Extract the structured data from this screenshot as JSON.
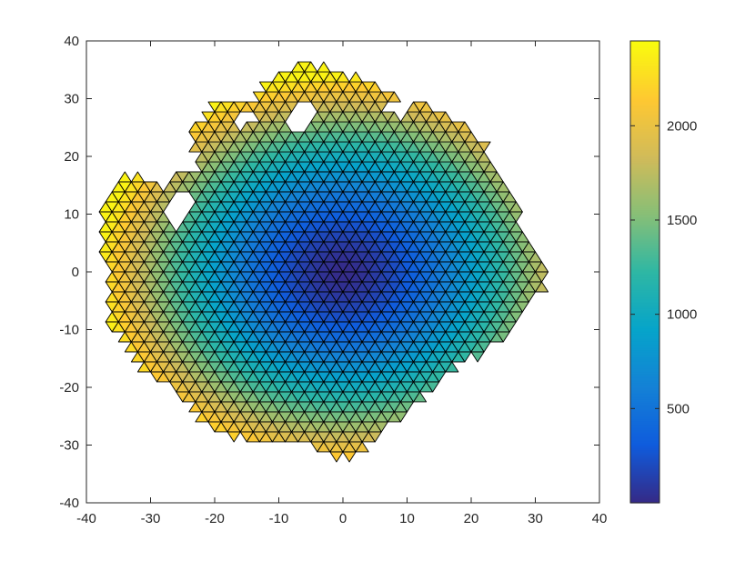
{
  "chart_data": {
    "type": "heatmap",
    "description_of_marks": "",
    "x_axis": {
      "range": [
        -40,
        40
      ],
      "ticks": [
        -40,
        -30,
        -20,
        -10,
        0,
        10,
        20,
        30,
        40
      ],
      "tick_labels": [
        "-40",
        "-30",
        "-20",
        "-10",
        "0",
        "10",
        "20",
        "30",
        "40"
      ]
    },
    "y_axis": {
      "range": [
        -40,
        40
      ],
      "ticks": [
        -40,
        -30,
        -20,
        -10,
        0,
        10,
        20,
        30,
        40
      ],
      "tick_labels": [
        "-40",
        "-30",
        "-20",
        "-10",
        "0",
        "10",
        "20",
        "30",
        "40"
      ]
    },
    "colorbar": {
      "range": [
        0,
        2450
      ],
      "ticks": [
        500,
        1000,
        1500,
        2000
      ],
      "tick_labels": [
        "500",
        "1000",
        "1500",
        "2000"
      ],
      "colormap": "parula"
    },
    "field": {
      "center": [
        0,
        0
      ],
      "max_value_at_edge": 2400,
      "triangle_side": 2
    },
    "region": {
      "boundary": [
        [
          -37,
          12
        ],
        [
          -35,
          16
        ],
        [
          -32,
          17
        ],
        [
          -28,
          15
        ],
        [
          -26,
          17
        ],
        [
          -22,
          17
        ],
        [
          -24,
          24
        ],
        [
          -20,
          29
        ],
        [
          -14,
          30
        ],
        [
          -12,
          33
        ],
        [
          -6,
          36
        ],
        [
          -2,
          35
        ],
        [
          4,
          33
        ],
        [
          10,
          30
        ],
        [
          14,
          28
        ],
        [
          18,
          26
        ],
        [
          22,
          22
        ],
        [
          24,
          18
        ],
        [
          26,
          14
        ],
        [
          28,
          8
        ],
        [
          30,
          4
        ],
        [
          32,
          -2
        ],
        [
          28,
          -6
        ],
        [
          26,
          -10
        ],
        [
          22,
          -14
        ],
        [
          18,
          -16
        ],
        [
          14,
          -20
        ],
        [
          10,
          -24
        ],
        [
          8,
          -26
        ],
        [
          4,
          -30
        ],
        [
          2,
          -32
        ],
        [
          -2,
          -32
        ],
        [
          -6,
          -30
        ],
        [
          -12,
          -30
        ],
        [
          -18,
          -28
        ],
        [
          -22,
          -26
        ],
        [
          -26,
          -20
        ],
        [
          -30,
          -18
        ],
        [
          -32,
          -16
        ],
        [
          -34,
          -12
        ],
        [
          -37,
          -8
        ],
        [
          -36,
          -2
        ],
        [
          -38,
          4
        ]
      ],
      "holes": [
        [
          [
            -26,
            8
          ],
          [
            -23,
            11
          ],
          [
            -23,
            15
          ],
          [
            -26,
            14
          ],
          [
            -28,
            10
          ]
        ],
        [
          [
            -10,
            26
          ],
          [
            -6,
            30
          ],
          [
            -4,
            27
          ],
          [
            -6,
            24
          ]
        ],
        [
          [
            6,
            28
          ],
          [
            10,
            31
          ],
          [
            12,
            29
          ],
          [
            9,
            27
          ]
        ],
        [
          [
            -18,
            25
          ],
          [
            -15,
            28
          ],
          [
            -13,
            26
          ]
        ]
      ]
    },
    "colors": {
      "edge": "#000000",
      "axis": "#262626",
      "parula_stops": [
        "#352a87",
        "#0f5cdd",
        "#1481d6",
        "#06a4ca",
        "#2eb7a4",
        "#87bf77",
        "#d1bb59",
        "#fec832",
        "#f9fb0e"
      ]
    }
  }
}
